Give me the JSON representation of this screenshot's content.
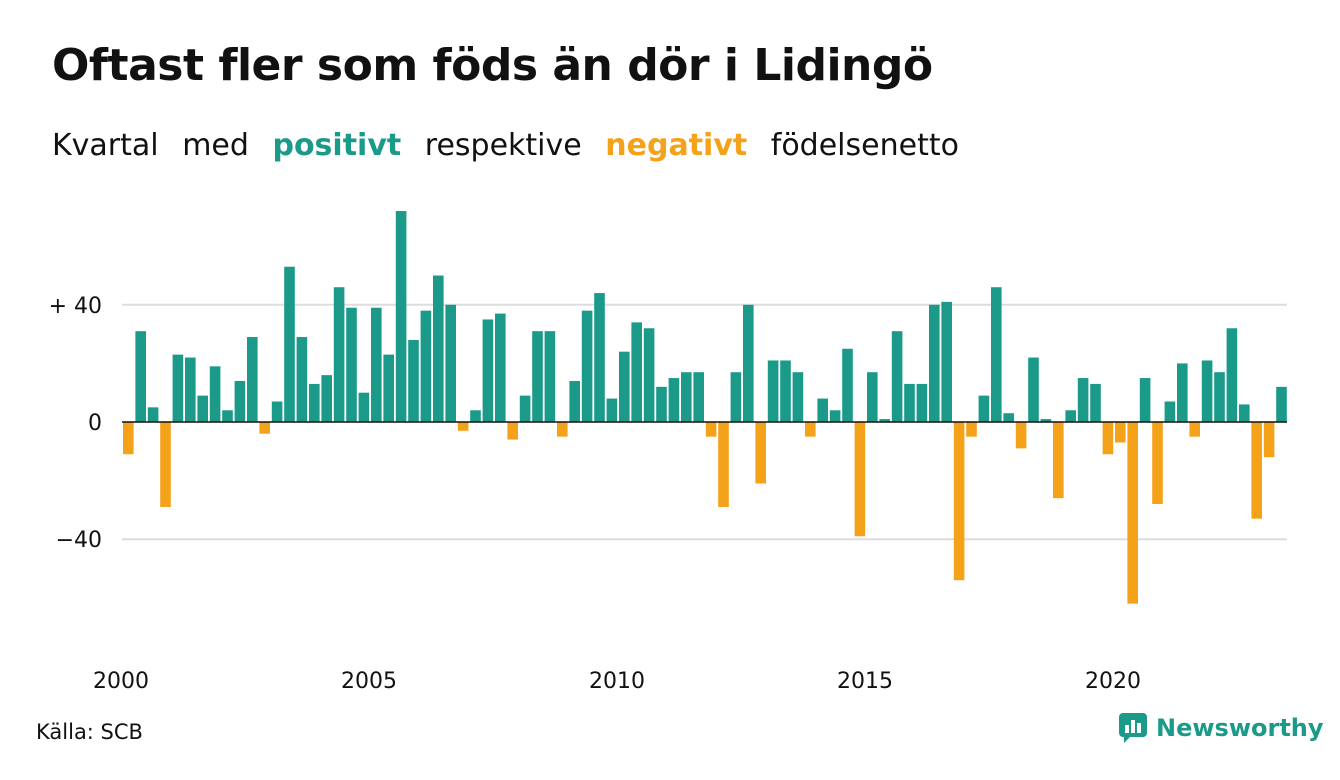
{
  "title": "Oftast fler som föds än dör i Lidingö",
  "subtitle": {
    "part1": "Kvartal",
    "part2": "med",
    "positive": "positivt",
    "part3": "respektive",
    "negative": "negativt",
    "part4": "födelsenetto"
  },
  "source": "Källa: SCB",
  "brand": "Newsworthy",
  "colors": {
    "positive": "#1b9a8a",
    "negative": "#f5a21b",
    "grid": "#dddddd"
  },
  "chart_data": {
    "type": "bar",
    "x_tick_labels": [
      "2000",
      "2005",
      "2010",
      "2015",
      "2020"
    ],
    "y_tick_labels": [
      "+ 40",
      "0",
      "−40"
    ],
    "y_ticks": [
      40,
      0,
      -40
    ],
    "ylim": [
      -75,
      75
    ],
    "grid": true,
    "legend": "none",
    "series": [
      {
        "values": [
          -11,
          31,
          5,
          -29,
          23,
          22,
          9,
          19,
          4,
          14,
          29,
          -4,
          7,
          53,
          29,
          13,
          16,
          46,
          39,
          10,
          39,
          23,
          72,
          28,
          38,
          50,
          40,
          -3,
          4,
          35,
          37,
          -6,
          9,
          31,
          31,
          -5,
          14,
          38,
          44,
          8,
          24,
          34,
          32,
          12,
          15,
          17,
          17,
          -5,
          -29,
          17,
          40,
          -21,
          21,
          21,
          17,
          -5,
          8,
          4,
          25,
          -39,
          17,
          1,
          31,
          13,
          13,
          40,
          41,
          -54,
          -5,
          9,
          46,
          3,
          -9,
          22,
          1,
          -26,
          4,
          15,
          13,
          -11,
          -7,
          -62,
          15,
          -28,
          7,
          20,
          -5,
          21,
          17,
          32,
          6,
          -33,
          -12,
          12
        ]
      }
    ]
  }
}
